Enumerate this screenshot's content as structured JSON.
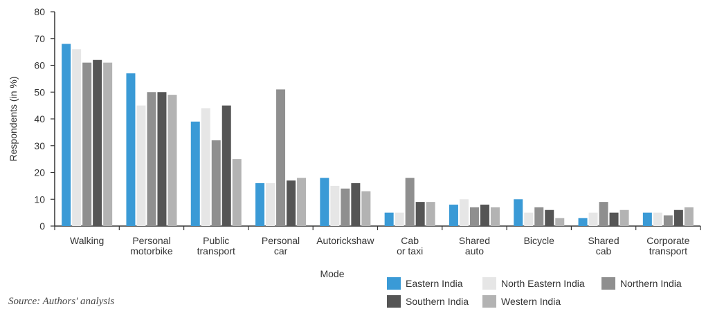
{
  "source_note": "Source: Authors' analysis",
  "chart_data": {
    "type": "bar",
    "xlabel": "Mode",
    "ylabel": "Respondents (in %)",
    "ylim": [
      0,
      80
    ],
    "yticks": [
      0,
      10,
      20,
      30,
      40,
      50,
      60,
      70,
      80
    ],
    "grid": false,
    "legend_position": "bottom-right",
    "categories": [
      [
        "Walking"
      ],
      [
        "Personal",
        "motorbike"
      ],
      [
        "Public",
        "transport"
      ],
      [
        "Personal",
        "car"
      ],
      [
        "Autorickshaw"
      ],
      [
        "Cab",
        "or taxi"
      ],
      [
        "Shared",
        "auto"
      ],
      [
        "Bicycle"
      ],
      [
        "Shared",
        "cab"
      ],
      [
        "Corporate",
        "transport"
      ]
    ],
    "series": [
      {
        "name": "Eastern India",
        "color": "#3a9ad6",
        "values": [
          68,
          57,
          39,
          16,
          18,
          5,
          8,
          10,
          3,
          5
        ]
      },
      {
        "name": "North Eastern India",
        "color": "#e6e6e6",
        "values": [
          66,
          45,
          44,
          16,
          15,
          5,
          10,
          5,
          5,
          5
        ]
      },
      {
        "name": "Northern India",
        "color": "#8f8f8f",
        "values": [
          61,
          50,
          32,
          51,
          14,
          18,
          7,
          7,
          9,
          4
        ]
      },
      {
        "name": "Southern India",
        "color": "#555555",
        "values": [
          62,
          50,
          45,
          17,
          16,
          9,
          8,
          6,
          5,
          6
        ]
      },
      {
        "name": "Western India",
        "color": "#b3b3b3",
        "values": [
          61,
          49,
          25,
          18,
          13,
          9,
          7,
          3,
          6,
          7
        ]
      }
    ]
  }
}
